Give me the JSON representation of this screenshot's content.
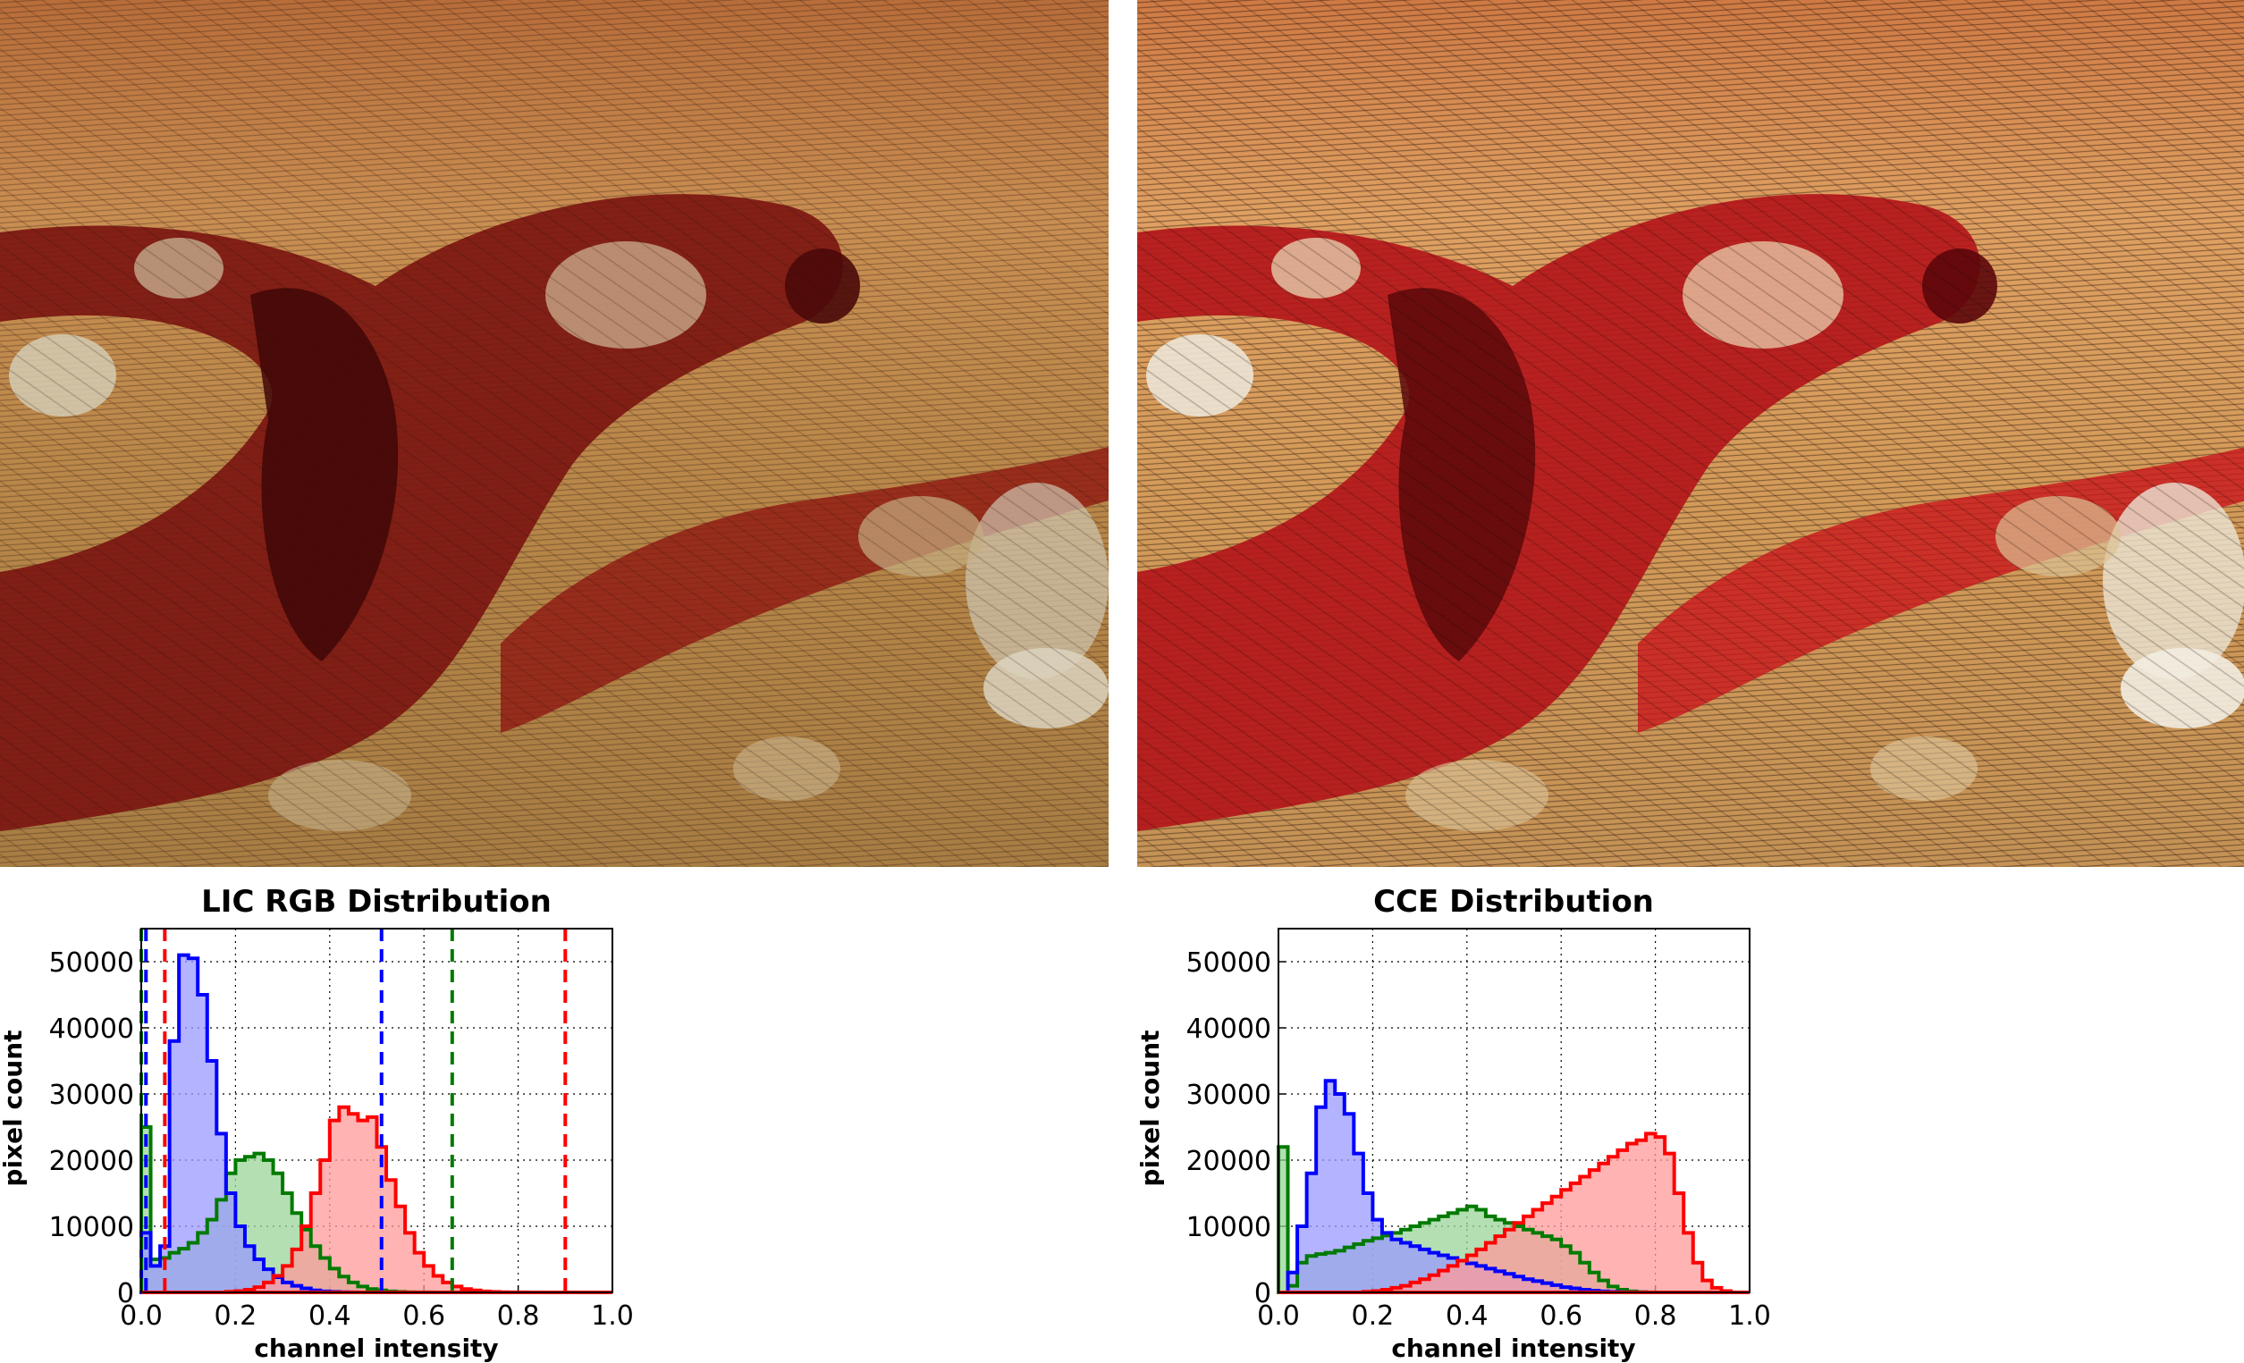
{
  "images": {
    "left": {
      "palette": [
        "#c68a4a",
        "#8c1a12",
        "#3e0808",
        "#d9cfb6"
      ]
    },
    "right": {
      "palette": [
        "#d98c4c",
        "#b5141a",
        "#4a0709",
        "#ece4d2"
      ]
    }
  },
  "colors": {
    "red": "#ff0000",
    "green": "#007a00",
    "blue": "#0000ff",
    "red_fill": "#ff9a9a",
    "green_fill": "#9ad49a",
    "blue_fill": "#9a9aff"
  },
  "chart_data": [
    {
      "type": "histogram",
      "title": "LIC RGB Distribution",
      "xlabel": "channel intensity",
      "ylabel": "pixel count",
      "xlim": [
        0.0,
        1.0
      ],
      "ylim": [
        0,
        55000
      ],
      "xticks": [
        "0.0",
        "0.2",
        "0.4",
        "0.6",
        "0.8",
        "1.0"
      ],
      "yticks": [
        "0",
        "10000",
        "20000",
        "30000",
        "40000",
        "50000"
      ],
      "grid": true,
      "bin_width": 0.02,
      "series": [
        {
          "channel": "green",
          "x0": 0.0,
          "values": [
            25000,
            5000,
            5200,
            6000,
            6600,
            7500,
            9000,
            11000,
            14000,
            18000,
            20000,
            20500,
            21000,
            20000,
            18000,
            15000,
            12000,
            9500,
            7000,
            5200,
            3600,
            2400,
            1500,
            900,
            500,
            300,
            150,
            80,
            40,
            20,
            10,
            0,
            0,
            0,
            0,
            0,
            0,
            0,
            0,
            0,
            0,
            0,
            0,
            0,
            0,
            0,
            0,
            0,
            0,
            0
          ],
          "markers": [
            0.0,
            0.66
          ]
        },
        {
          "channel": "blue",
          "x0": 0.0,
          "values": [
            9000,
            4000,
            7000,
            38000,
            51000,
            50500,
            45000,
            35000,
            24000,
            15000,
            10000,
            7000,
            5000,
            3500,
            2300,
            1500,
            1000,
            600,
            300,
            150,
            80,
            40,
            20,
            0,
            0,
            0,
            0,
            0,
            0,
            0,
            0,
            0,
            0,
            0,
            0,
            0,
            0,
            0,
            0,
            0,
            0,
            0,
            0,
            0,
            0,
            0,
            0,
            0,
            0,
            0
          ],
          "markers": [
            0.01,
            0.51
          ]
        },
        {
          "channel": "red",
          "x0": 0.0,
          "values": [
            0,
            0,
            0,
            0,
            0,
            0,
            0,
            0,
            0,
            100,
            200,
            400,
            800,
            1500,
            2500,
            4000,
            6500,
            10000,
            15000,
            20000,
            26000,
            28000,
            27000,
            26000,
            26500,
            22000,
            17000,
            13000,
            9000,
            6000,
            4000,
            2500,
            1500,
            900,
            500,
            300,
            150,
            80,
            40,
            20,
            10,
            0,
            0,
            0,
            0,
            0,
            0,
            0,
            0,
            0
          ],
          "markers": [
            0.05,
            0.9
          ]
        }
      ]
    },
    {
      "type": "histogram",
      "title": "CCE Distribution",
      "xlabel": "channel intensity",
      "ylabel": "pixel count",
      "xlim": [
        0.0,
        1.0
      ],
      "ylim": [
        0,
        55000
      ],
      "xticks": [
        "0.0",
        "0.2",
        "0.4",
        "0.6",
        "0.8",
        "1.0"
      ],
      "yticks": [
        "0",
        "10000",
        "20000",
        "30000",
        "40000",
        "50000"
      ],
      "grid": true,
      "bin_width": 0.02,
      "series": [
        {
          "channel": "green",
          "x0": 0.0,
          "values": [
            22000,
            1000,
            4500,
            5500,
            5800,
            6000,
            6300,
            6800,
            7300,
            7800,
            8200,
            8600,
            9000,
            9500,
            10000,
            10500,
            11000,
            11500,
            12000,
            12500,
            13000,
            12500,
            11500,
            11000,
            10500,
            10000,
            9500,
            9000,
            8500,
            8000,
            7000,
            6000,
            4500,
            3000,
            1800,
            900,
            400,
            150,
            50,
            20,
            0,
            0,
            0,
            0,
            0,
            0,
            0,
            0,
            0,
            0
          ],
          "markers": []
        },
        {
          "channel": "blue",
          "x0": 0.0,
          "values": [
            0,
            3000,
            10000,
            18000,
            28000,
            32000,
            30000,
            27000,
            21000,
            15000,
            11000,
            9000,
            8000,
            7500,
            7000,
            6500,
            6000,
            5600,
            5200,
            4800,
            4400,
            4000,
            3600,
            3200,
            2800,
            2400,
            2000,
            1700,
            1400,
            1100,
            800,
            600,
            400,
            250,
            150,
            80,
            40,
            20,
            10,
            0,
            0,
            0,
            0,
            0,
            0,
            0,
            0,
            0,
            0,
            0
          ],
          "markers": []
        },
        {
          "channel": "red",
          "x0": 0.0,
          "values": [
            0,
            0,
            0,
            0,
            0,
            0,
            0,
            0,
            0,
            100,
            200,
            400,
            700,
            1000,
            1500,
            2000,
            2600,
            3300,
            4000,
            4800,
            5600,
            6500,
            7500,
            8500,
            9500,
            10500,
            11500,
            12500,
            13500,
            14500,
            15500,
            16500,
            17500,
            18500,
            19500,
            20500,
            21500,
            22500,
            23000,
            24000,
            23500,
            21000,
            15000,
            9000,
            4500,
            1800,
            700,
            200,
            0,
            0
          ],
          "markers": []
        }
      ]
    }
  ]
}
